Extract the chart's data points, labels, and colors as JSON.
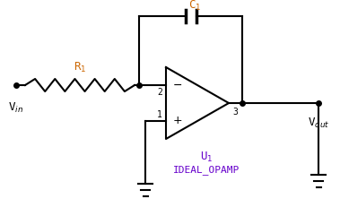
{
  "background_color": "#ffffff",
  "line_color": "#000000",
  "label_color_orange": "#cc6600",
  "label_color_purple": "#6600cc",
  "R1_label": "R$_1$",
  "C1_label": "C$_1$",
  "U1_label": "U$_1$",
  "OPAMP_label": "IDEAL_OPAMP",
  "Vin_label": "V$_{in}$",
  "Vout_label": "V$_{out}$",
  "pin2_label": "2",
  "pin1_label": "1",
  "pin3_label": "3",
  "minus_label": "−",
  "plus_label": "+"
}
